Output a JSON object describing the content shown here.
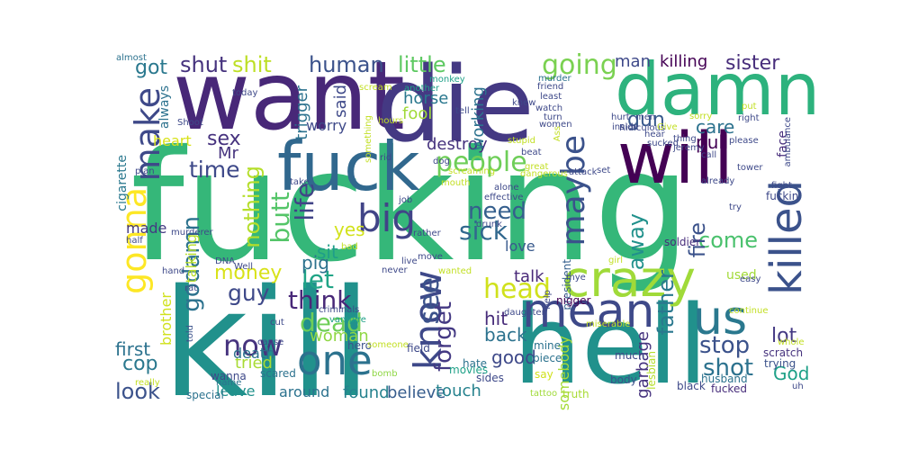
{
  "words": [
    {
      "text": "fucking",
      "color": "#35b779"
    },
    {
      "text": "kill",
      "color": "#21918c"
    },
    {
      "text": "hell",
      "color": "#21918c"
    },
    {
      "text": "want",
      "color": "#482878"
    },
    {
      "text": "die",
      "color": "#443983"
    },
    {
      "text": "damn",
      "color": "#2db27d"
    },
    {
      "text": "will",
      "color": "#440154"
    },
    {
      "text": "fuck",
      "color": "#31688e"
    },
    {
      "text": "crazy",
      "color": "#a0da39"
    },
    {
      "text": "gonna",
      "color": "#fde725"
    },
    {
      "text": "mean",
      "color": "#3e4989"
    },
    {
      "text": "us",
      "color": "#2a788e"
    },
    {
      "text": "killed",
      "color": "#3b528b"
    },
    {
      "text": "maybe",
      "color": "#3b528b"
    },
    {
      "text": "know",
      "color": "#3e4989"
    },
    {
      "text": "one",
      "color": "#2c728e"
    },
    {
      "text": "big",
      "color": "#414487"
    },
    {
      "text": "make",
      "color": "#3e4989"
    },
    {
      "text": "head",
      "color": "#d0e11c"
    },
    {
      "text": "people",
      "color": "#6ece58"
    },
    {
      "text": "going",
      "color": "#7ad151"
    },
    {
      "text": "shit",
      "color": "#bddf26"
    },
    {
      "text": "shut",
      "color": "#46337e"
    },
    {
      "text": "human",
      "color": "#3b528b"
    },
    {
      "text": "little",
      "color": "#5ec962"
    },
    {
      "text": "sister",
      "color": "#472d7b"
    },
    {
      "text": "killing",
      "color": "#440154"
    },
    {
      "text": "man",
      "color": "#3e4989"
    },
    {
      "text": "got",
      "color": "#2a788e"
    },
    {
      "text": "gun",
      "color": "#38598c"
    },
    {
      "text": "sex",
      "color": "#46327e"
    },
    {
      "text": "time",
      "color": "#3e4989"
    },
    {
      "text": "godamn",
      "color": "#2c728e"
    },
    {
      "text": "nothing",
      "color": "#b5de2b"
    },
    {
      "text": "butt",
      "color": "#54c568"
    },
    {
      "text": "life",
      "color": "#414487"
    },
    {
      "text": "need",
      "color": "#355f8d"
    },
    {
      "text": "sick",
      "color": "#31688e"
    },
    {
      "text": "see",
      "color": "#3b528b"
    },
    {
      "text": "forget",
      "color": "#443983"
    },
    {
      "text": "let",
      "color": "#20a486"
    },
    {
      "text": "think",
      "color": "#482878"
    },
    {
      "text": "dead",
      "color": "#6ece58"
    },
    {
      "text": "now",
      "color": "#46337e"
    },
    {
      "text": "money",
      "color": "#d8e219"
    },
    {
      "text": "guy",
      "color": "#3e4989"
    },
    {
      "text": "come",
      "color": "#4ac16d"
    },
    {
      "text": "fire",
      "color": "#3b528b"
    },
    {
      "text": "away",
      "color": "#21918c"
    },
    {
      "text": "father",
      "color": "#2a788e"
    },
    {
      "text": "stop",
      "color": "#3b528b"
    },
    {
      "text": "shot",
      "color": "#2c728e"
    },
    {
      "text": "look",
      "color": "#3b528b"
    },
    {
      "text": "cop",
      "color": "#2a788e"
    },
    {
      "text": "lot",
      "color": "#443983"
    },
    {
      "text": "God",
      "color": "#1fa188"
    },
    {
      "text": "care",
      "color": "#2c728e"
    },
    {
      "text": "pull",
      "color": "#440154"
    },
    {
      "text": "good",
      "color": "#3e4989"
    },
    {
      "text": "back",
      "color": "#2c728e"
    },
    {
      "text": "hit",
      "color": "#472c7a"
    },
    {
      "text": "yes",
      "color": "#d2e21b"
    },
    {
      "text": "sit",
      "color": "#1f9e89"
    },
    {
      "text": "pig",
      "color": "#2c728e"
    },
    {
      "text": "woman",
      "color": "#8fd744"
    },
    {
      "text": "Mr",
      "color": "#46337e"
    },
    {
      "text": "first",
      "color": "#2c728e"
    },
    {
      "text": "worry",
      "color": "#3e4989"
    },
    {
      "text": "fool",
      "color": "#a0da39"
    },
    {
      "text": "horse",
      "color": "#2a788e"
    },
    {
      "text": "heart",
      "color": "#d8e219"
    },
    {
      "text": "leave",
      "color": "#21918c"
    },
    {
      "text": "around",
      "color": "#2c728e"
    },
    {
      "text": "found",
      "color": "#26828e"
    },
    {
      "text": "believe",
      "color": "#365c8d"
    },
    {
      "text": "touch",
      "color": "#26828e"
    },
    {
      "text": "tried",
      "color": "#a8db34"
    },
    {
      "text": "death",
      "color": "#2c728e"
    },
    {
      "text": "garbage",
      "color": "#46337e"
    },
    {
      "text": "somebody",
      "color": "#a5db36"
    },
    {
      "text": "talk",
      "color": "#482878"
    },
    {
      "text": "love",
      "color": "#38598c"
    },
    {
      "text": "made",
      "color": "#443983"
    },
    {
      "text": "destroy",
      "color": "#46337e"
    },
    {
      "text": "said",
      "color": "#3e4989"
    },
    {
      "text": "trigger",
      "color": "#2c728e"
    },
    {
      "text": "working",
      "color": "#2c728e"
    },
    {
      "text": "brother",
      "color": "#d0e11c"
    },
    {
      "text": "talking",
      "color": "#b8de29"
    },
    {
      "text": "always",
      "color": "#2c728e"
    },
    {
      "text": "cigarette",
      "color": "#2a788e"
    },
    {
      "text": "used",
      "color": "#a2da37"
    },
    {
      "text": "fuckin'",
      "color": "#3e4989"
    },
    {
      "text": "face",
      "color": "#472d7b"
    },
    {
      "text": "scratch",
      "color": "#46337e"
    },
    {
      "text": "trying",
      "color": "#3b528b"
    },
    {
      "text": "husband",
      "color": "#2c728e"
    },
    {
      "text": "black",
      "color": "#3e4989"
    },
    {
      "text": "fucked",
      "color": "#472d7b"
    },
    {
      "text": "body",
      "color": "#3b528b"
    },
    {
      "text": "lesbian",
      "color": "#b5de2b"
    },
    {
      "text": "soldier",
      "color": "#472d7b"
    },
    {
      "text": "president",
      "color": "#355f8d"
    },
    {
      "text": "nigger",
      "color": "#440154"
    },
    {
      "text": "much",
      "color": "#3e4989"
    },
    {
      "text": "mine",
      "color": "#2c728e"
    },
    {
      "text": "piece",
      "color": "#2c728e"
    },
    {
      "text": "truth",
      "color": "#a8db34"
    },
    {
      "text": "tattoo",
      "color": "#a0da39"
    },
    {
      "text": "say",
      "color": "#d0e11c"
    },
    {
      "text": "sides",
      "color": "#3e4989"
    },
    {
      "text": "hate",
      "color": "#2c728e"
    },
    {
      "text": "movies",
      "color": "#1fa188"
    },
    {
      "text": "field",
      "color": "#3e4989"
    },
    {
      "text": "hero",
      "color": "#3b528b"
    },
    {
      "text": "someone",
      "color": "#c2df23"
    },
    {
      "text": "bomb",
      "color": "#8fd744"
    },
    {
      "text": "scared",
      "color": "#2c728e"
    },
    {
      "text": "wanna",
      "color": "#3e4989"
    },
    {
      "text": "special",
      "color": "#2c728e"
    },
    {
      "text": "name",
      "color": "#2c728e"
    },
    {
      "text": "really",
      "color": "#c2df23"
    },
    {
      "text": "told",
      "color": "#3b528b"
    },
    {
      "text": "cut",
      "color": "#3e4989"
    },
    {
      "text": "cause",
      "color": "#3e4989"
    },
    {
      "text": "vampire",
      "color": "#1fa188"
    },
    {
      "text": "criminals",
      "color": "#3e4989"
    },
    {
      "text": "rat",
      "color": "#3e4989"
    },
    {
      "text": "hand",
      "color": "#3e4989"
    },
    {
      "text": "half",
      "color": "#3e4989"
    },
    {
      "text": "murderer",
      "color": "#3e4989"
    },
    {
      "text": "plan",
      "color": "#3e4989"
    },
    {
      "text": "Shoot",
      "color": "#3e4989"
    },
    {
      "text": "almost",
      "color": "#2c728e"
    },
    {
      "text": "today",
      "color": "#3e4989"
    },
    {
      "text": "scream",
      "color": "#c2df23"
    },
    {
      "text": "something",
      "color": "#c2df23"
    },
    {
      "text": "hours",
      "color": "#c2df23"
    },
    {
      "text": "monkey",
      "color": "#1fa188"
    },
    {
      "text": "another",
      "color": "#1fa188"
    },
    {
      "text": "tell",
      "color": "#3e4989"
    },
    {
      "text": "knew",
      "color": "#3e4989"
    },
    {
      "text": "murder",
      "color": "#2c728e"
    },
    {
      "text": "friend",
      "color": "#3e4989"
    },
    {
      "text": "least",
      "color": "#3e4989"
    },
    {
      "text": "watch",
      "color": "#3e4989"
    },
    {
      "text": "turn",
      "color": "#3e4989"
    },
    {
      "text": "women",
      "color": "#3e4989"
    },
    {
      "text": "dog",
      "color": "#3e4989"
    },
    {
      "text": "rid",
      "color": "#3e4989"
    },
    {
      "text": "stupid",
      "color": "#c2df23"
    },
    {
      "text": "beat",
      "color": "#3e4989"
    },
    {
      "text": "great",
      "color": "#c2df23"
    },
    {
      "text": "dangerous",
      "color": "#c2df23"
    },
    {
      "text": "mouth",
      "color": "#c2df23"
    },
    {
      "text": "effective",
      "color": "#3e4989"
    },
    {
      "text": "alone",
      "color": "#3e4989"
    },
    {
      "text": "job",
      "color": "#3e4989"
    },
    {
      "text": "drunk",
      "color": "#3e4989"
    },
    {
      "text": "rather",
      "color": "#3e4989"
    },
    {
      "text": "bad",
      "color": "#c2df23"
    },
    {
      "text": "live",
      "color": "#3e4989"
    },
    {
      "text": "never",
      "color": "#3e4989"
    },
    {
      "text": "wanted",
      "color": "#c2df23"
    },
    {
      "text": "move",
      "color": "#3e4989"
    },
    {
      "text": "Well",
      "color": "#3e4989"
    },
    {
      "text": "DNA",
      "color": "#3e4989"
    },
    {
      "text": "take",
      "color": "#3e4989"
    },
    {
      "text": "screaming",
      "color": "#c2df23"
    },
    {
      "text": "attack",
      "color": "#3e4989"
    },
    {
      "text": "set",
      "color": "#3e4989"
    },
    {
      "text": "hurt",
      "color": "#3e4989"
    },
    {
      "text": "men",
      "color": "#3e4989"
    },
    {
      "text": "Ridiculous",
      "color": "#3e4989"
    },
    {
      "text": "Give",
      "color": "#c2df23"
    },
    {
      "text": "thing",
      "color": "#3e4989"
    },
    {
      "text": "jeremy",
      "color": "#3e4989"
    },
    {
      "text": "call",
      "color": "#3e4989"
    },
    {
      "text": "sorry",
      "color": "#c2df23"
    },
    {
      "text": "right",
      "color": "#3e4989"
    },
    {
      "text": "please",
      "color": "#3e4989"
    },
    {
      "text": "tower",
      "color": "#3e4989"
    },
    {
      "text": "put",
      "color": "#c2df23"
    },
    {
      "text": "hear",
      "color": "#3e4989"
    },
    {
      "text": "sucked",
      "color": "#3e4989"
    },
    {
      "text": "ambulance",
      "color": "#3e4989"
    },
    {
      "text": "fight",
      "color": "#3e4989"
    },
    {
      "text": "already",
      "color": "#3e4989"
    },
    {
      "text": "try",
      "color": "#3e4989"
    },
    {
      "text": "easy",
      "color": "#3e4989"
    },
    {
      "text": "continue",
      "color": "#c2df23"
    },
    {
      "text": "whole",
      "color": "#c2df23"
    },
    {
      "text": "uh",
      "color": "#3e4989"
    },
    {
      "text": "girl",
      "color": "#c2df23"
    },
    {
      "text": "help",
      "color": "#3e4989"
    },
    {
      "text": "daughter",
      "color": "#3e4989"
    },
    {
      "text": "miserable",
      "color": "#c2df23"
    },
    {
      "text": "inside",
      "color": "#3e4989"
    },
    {
      "text": "Ass",
      "color": "#c2df23"
    },
    {
      "text": "mye",
      "color": "#3e4989"
    }
  ]
}
